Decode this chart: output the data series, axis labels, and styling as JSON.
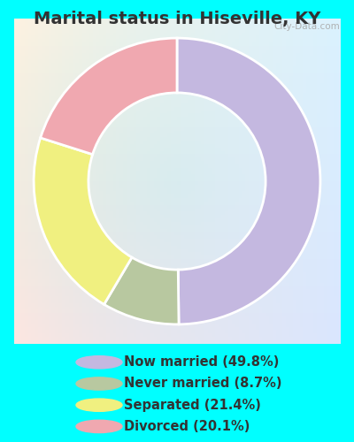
{
  "title": "Marital status in Hiseville, KY",
  "title_fontsize": 14,
  "title_fontweight": "bold",
  "slices": [
    {
      "label": "Now married (49.8%)",
      "value": 49.8,
      "color": "#c4b8e0"
    },
    {
      "label": "Never married (8.7%)",
      "value": 8.7,
      "color": "#b8c8a0"
    },
    {
      "label": "Separated (21.4%)",
      "value": 21.4,
      "color": "#f0f080"
    },
    {
      "label": "Divorced (20.1%)",
      "value": 20.1,
      "color": "#f0a8b0"
    }
  ],
  "chart_bg": "#d8f0e0",
  "outer_bg": "#00ffff",
  "donut_width": 0.42,
  "start_angle": 90,
  "legend_fontsize": 10.5,
  "watermark": "City-Data.com",
  "text_color": "#333333"
}
